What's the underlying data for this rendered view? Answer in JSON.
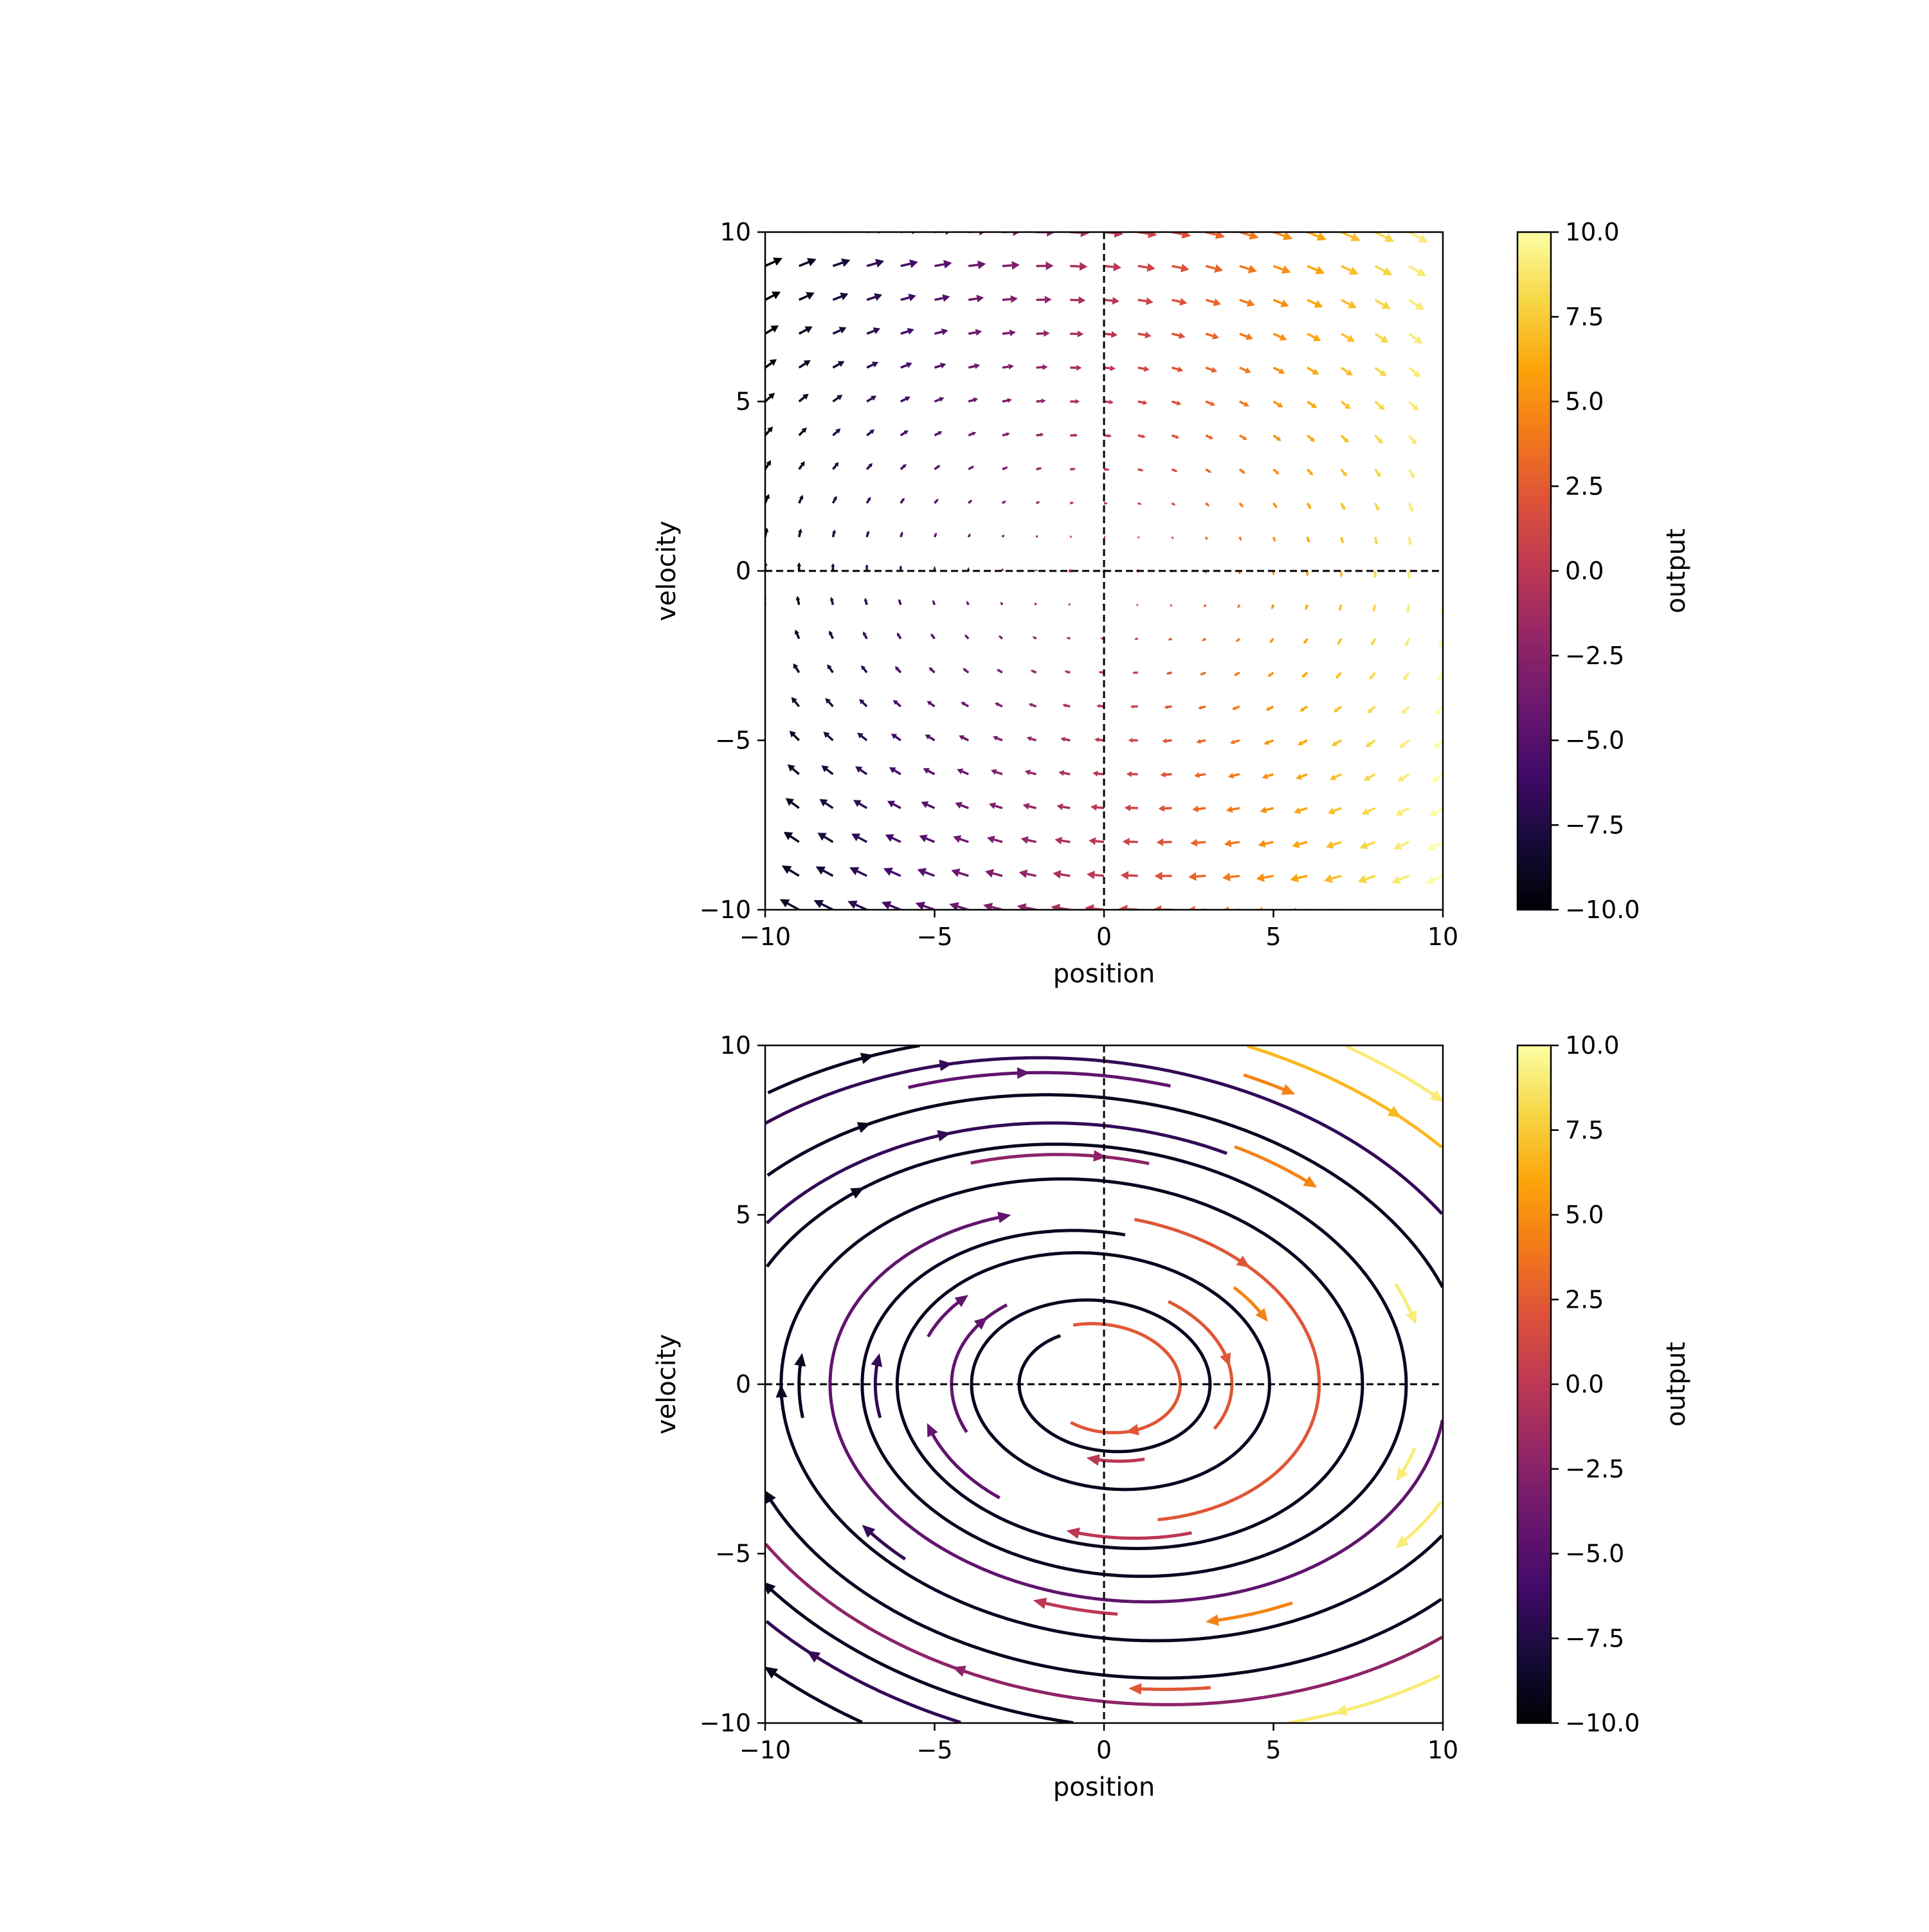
{
  "chart_data": [
    {
      "type": "quiver",
      "title": "",
      "xlabel": "position",
      "ylabel": "velocity",
      "xlim": [
        -10,
        10
      ],
      "ylim": [
        -10,
        10
      ],
      "xticks": [
        -10,
        -5,
        0,
        5,
        10
      ],
      "yticks": [
        -10,
        -5,
        0,
        5,
        10
      ],
      "tick_labels_x": [
        "−10",
        "−5",
        "0",
        "5",
        "10"
      ],
      "tick_labels_y": [
        "−10",
        "−5",
        "0",
        "5",
        "10"
      ],
      "reference_lines": {
        "x": 0,
        "y": 0,
        "style": "dashed"
      },
      "grid": false,
      "vector_field": {
        "grid_x": {
          "start": -10,
          "stop": 10,
          "count": 21
        },
        "grid_y": {
          "start": -10,
          "stop": 10,
          "count": 21
        },
        "u": "velocity",
        "v": "-0.5*position - 0.1*velocity",
        "color_by": "position"
      },
      "colorbar": {
        "label": "output",
        "colormap": "inferno",
        "range": [
          -10,
          10
        ],
        "ticks": [
          10,
          7.5,
          5,
          2.5,
          0,
          -2.5,
          -5,
          -7.5,
          -10
        ],
        "tick_labels": [
          "10.0",
          "7.5",
          "5.0",
          "2.5",
          "0.0",
          "−2.5",
          "−5.0",
          "−7.5",
          "−10.0"
        ]
      }
    },
    {
      "type": "streamplot",
      "title": "",
      "xlabel": "position",
      "ylabel": "velocity",
      "xlim": [
        -10,
        10
      ],
      "ylim": [
        -10,
        10
      ],
      "xticks": [
        -10,
        -5,
        0,
        5,
        10
      ],
      "yticks": [
        -10,
        -5,
        0,
        5,
        10
      ],
      "tick_labels_x": [
        "−10",
        "−5",
        "0",
        "5",
        "10"
      ],
      "tick_labels_y": [
        "−10",
        "−5",
        "0",
        "5",
        "10"
      ],
      "reference_lines": {
        "x": 0,
        "y": 0,
        "style": "dashed"
      },
      "grid": false,
      "vector_field": {
        "u": "velocity",
        "v": "-0.5*position - 0.1*velocity",
        "color_by": "position"
      },
      "colorbar": {
        "label": "output",
        "colormap": "inferno",
        "range": [
          -10,
          10
        ],
        "ticks": [
          10,
          7.5,
          5,
          2.5,
          0,
          -2.5,
          -5,
          -7.5,
          -10
        ],
        "tick_labels": [
          "10.0",
          "7.5",
          "5.0",
          "2.5",
          "0.0",
          "−2.5",
          "−5.0",
          "−7.5",
          "−10.0"
        ]
      }
    }
  ]
}
